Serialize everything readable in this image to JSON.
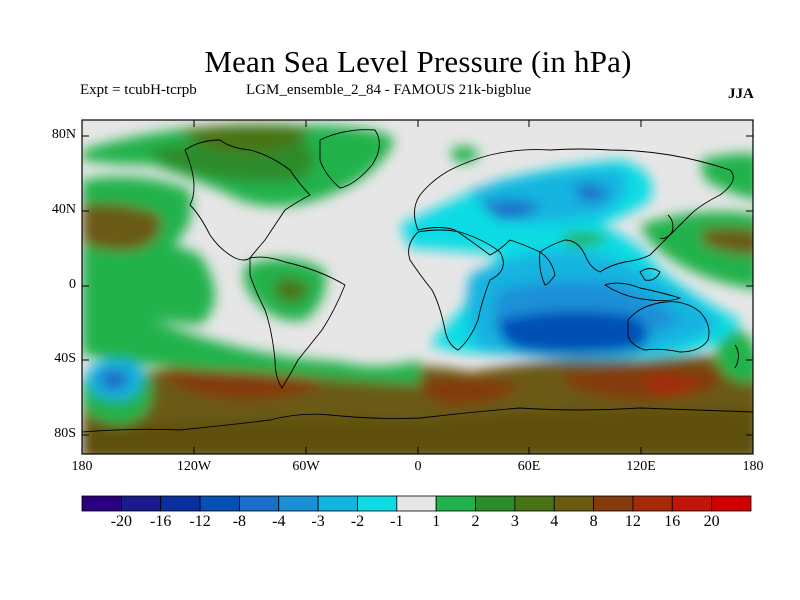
{
  "title": "Mean Sea Level Pressure (in hPa)",
  "subtitle_left": "Expt = tcubH-tcrpb",
  "subtitle_center": "LGM_ensemble_2_84 - FAMOUS 21k-bigblue",
  "season": "JJA",
  "map": {
    "lat_labels": [
      "80N",
      "40N",
      "0",
      "40S",
      "80S"
    ],
    "lon_labels": [
      "180",
      "120W",
      "60W",
      "0",
      "60E",
      "120E",
      "180"
    ]
  },
  "colorbar": {
    "colors": [
      "#2a0080",
      "#1a1a8c",
      "#0a2fa0",
      "#0550b5",
      "#1a6fc8",
      "#1a90d8",
      "#14b4e0",
      "#0fdbe4",
      "#e6e6e6",
      "#22b24c",
      "#2e8b2a",
      "#4a7318",
      "#6b5a12",
      "#843b0e",
      "#a52a0a",
      "#c01508",
      "#d00000"
    ],
    "labels": [
      "-20",
      "-16",
      "-12",
      "-8",
      "-4",
      "-3",
      "-2",
      "-1",
      "1",
      "2",
      "3",
      "4",
      "8",
      "12",
      "16",
      "20"
    ]
  }
}
